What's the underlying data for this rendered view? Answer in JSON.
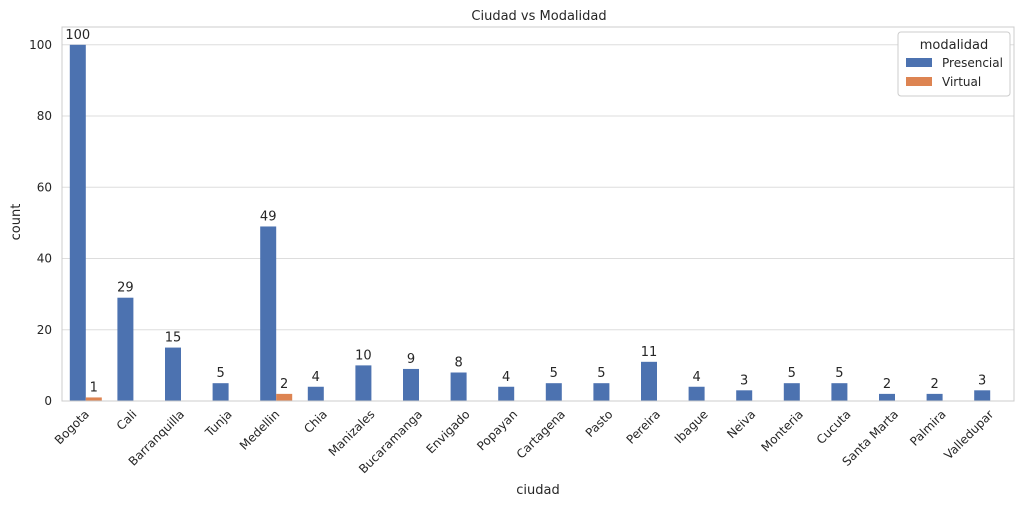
{
  "chart_data": {
    "type": "bar",
    "title": "Ciudad vs Modalidad",
    "xlabel": "ciudad",
    "ylabel": "count",
    "ylim": [
      0,
      105
    ],
    "yticks": [
      0,
      20,
      40,
      60,
      80,
      100
    ],
    "grid": true,
    "legend": {
      "title": "modalidad",
      "placement": "top-right"
    },
    "categories": [
      "Bogota",
      "Cali",
      "Barranquilla",
      "Tunja",
      "Medellin",
      "Chia",
      "Manizales",
      "Bucaramanga",
      "Envigado",
      "Popayan",
      "Cartagena",
      "Pasto",
      "Pereira",
      "Ibague",
      "Neiva",
      "Monteria",
      "Cucuta",
      "Santa Marta",
      "Palmira",
      "Valledupar"
    ],
    "series": [
      {
        "name": "Presencial",
        "color": "#4c72b0",
        "values": [
          100,
          29,
          15,
          5,
          49,
          4,
          10,
          9,
          8,
          4,
          5,
          5,
          11,
          4,
          3,
          5,
          5,
          2,
          2,
          3
        ]
      },
      {
        "name": "Virtual",
        "color": "#dd8452",
        "values": [
          1,
          null,
          null,
          null,
          2,
          null,
          null,
          null,
          null,
          null,
          null,
          null,
          null,
          null,
          null,
          null,
          null,
          null,
          null,
          null
        ]
      }
    ]
  }
}
